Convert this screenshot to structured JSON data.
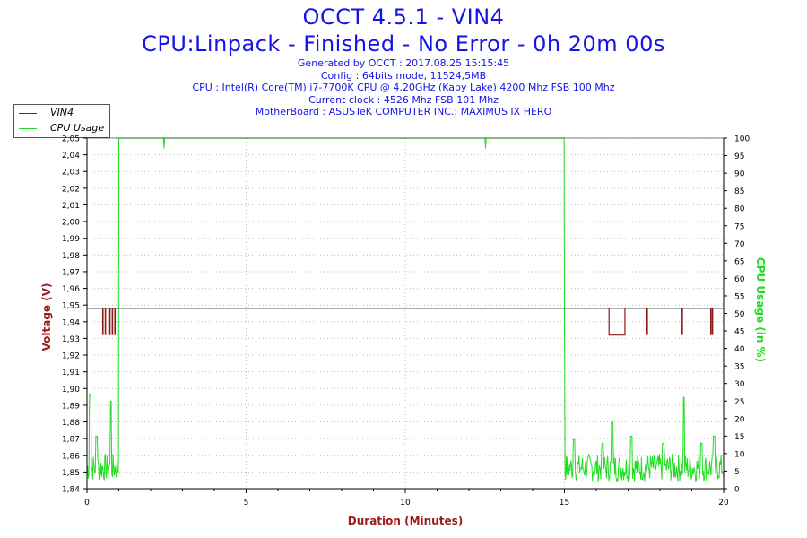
{
  "header": {
    "title": "OCCT 4.5.1 - VIN4",
    "subtitle": "CPU:Linpack - Finished - No Error - 0h 20m 00s",
    "lines": [
      "Generated by OCCT : 2017.08.25 15:15:45",
      "Config : 64bits mode, 11524,5MB",
      "CPU : Intel(R) Core(TM) i7-7700K CPU @ 4.20GHz (Kaby Lake) 4200 Mhz FSB 100 Mhz",
      "Current clock : 4526 Mhz FSB 101 Mhz",
      "MotherBoard : ASUSTeK COMPUTER INC.: MAXIMUS IX HERO"
    ]
  },
  "legend": {
    "items": [
      {
        "label": "VIN4",
        "color": "#8b1a1a"
      },
      {
        "label": "CPU Usage",
        "color": "#22dd22"
      }
    ]
  },
  "colors": {
    "title": "#1414e6",
    "voltage": "#8b1a1a",
    "usage": "#22dd22",
    "axis_left_label": "#9b1c1c",
    "axis_right_label": "#22dd22",
    "grid": "#bbbbbb",
    "plot_bg": "#ffffff"
  },
  "chart_data": {
    "type": "line",
    "xlabel": "Duration (Minutes)",
    "ylabel_left": "Voltage (V)",
    "ylabel_right": "CPU Usage (in %)",
    "xlim": [
      0,
      20
    ],
    "ylim_left": [
      1.84,
      2.05
    ],
    "ylim_right": [
      0,
      100
    ],
    "x_ticks": [
      0,
      5,
      10,
      15,
      20
    ],
    "y_left_ticks": [
      "1,84",
      "1,85",
      "1,86",
      "1,87",
      "1,88",
      "1,89",
      "1,90",
      "1,91",
      "1,92",
      "1,93",
      "1,94",
      "1,95",
      "1,96",
      "1,97",
      "1,98",
      "1,99",
      "2,00",
      "2,01",
      "2,02",
      "2,03",
      "2,04",
      "2,05"
    ],
    "y_right_ticks": [
      0,
      5,
      10,
      15,
      20,
      25,
      30,
      35,
      40,
      45,
      50,
      55,
      60,
      65,
      70,
      75,
      80,
      85,
      90,
      95,
      100
    ],
    "grid": true,
    "legend_position": "top-left",
    "series": [
      {
        "name": "VIN4",
        "axis": "left",
        "baseline": 1.948,
        "low": 1.932,
        "dip_spikes": [
          0.5,
          0.58,
          0.72,
          0.8,
          0.88,
          17.6,
          18.7,
          19.6,
          19.65
        ],
        "dip_intervals": [
          [
            16.4,
            16.9
          ]
        ]
      },
      {
        "name": "CPU Usage",
        "axis": "right",
        "idle_before": [
          0,
          1.0
        ],
        "full_load": [
          1.0,
          15.0
        ],
        "load_value": 100,
        "idle_after": [
          15.0,
          20.0
        ],
        "idle_typical": 5,
        "idle_peaks": [
          {
            "x": 0.1,
            "y": 27
          },
          {
            "x": 0.3,
            "y": 15
          },
          {
            "x": 0.75,
            "y": 25
          },
          {
            "x": 15.3,
            "y": 14
          },
          {
            "x": 16.2,
            "y": 13
          },
          {
            "x": 16.5,
            "y": 19
          },
          {
            "x": 17.1,
            "y": 15
          },
          {
            "x": 18.1,
            "y": 13
          },
          {
            "x": 18.75,
            "y": 26
          },
          {
            "x": 19.3,
            "y": 13
          },
          {
            "x": 19.7,
            "y": 15
          }
        ]
      }
    ]
  }
}
